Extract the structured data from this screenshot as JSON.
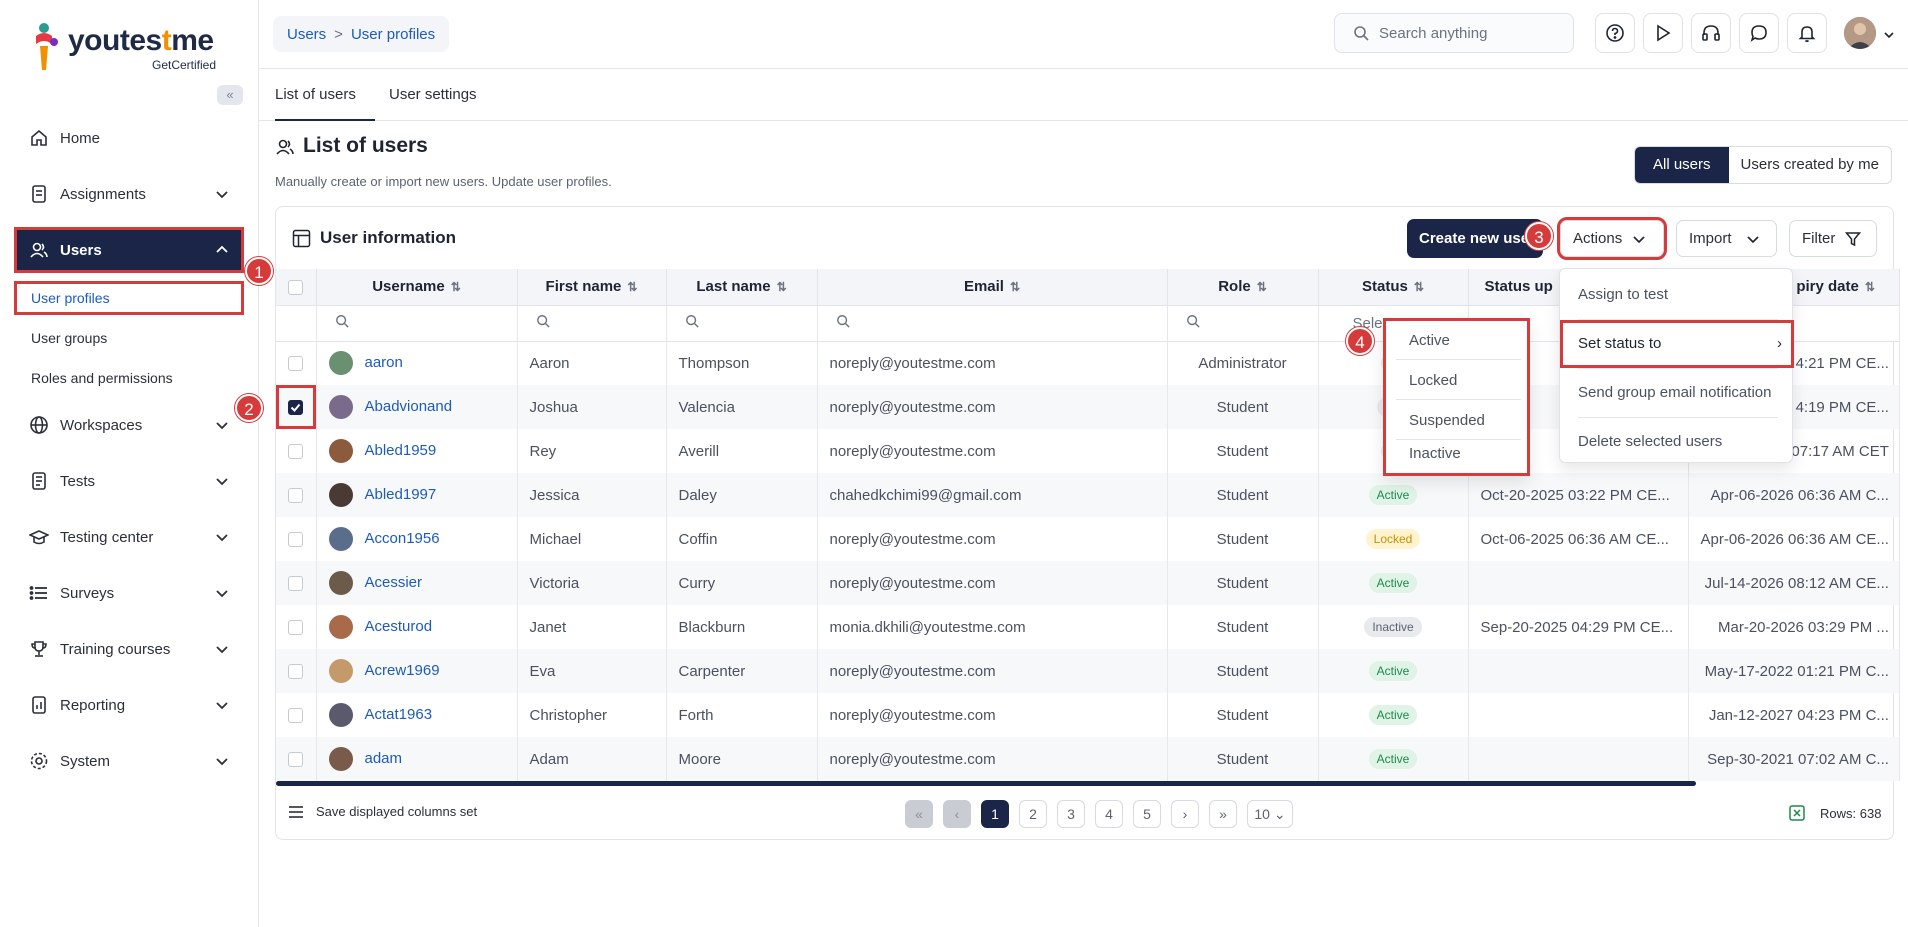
{
  "brand": {
    "name_part1": "youtes",
    "name_part2": "t",
    "name_part3": "me",
    "sub": "GetCertified"
  },
  "sidebar": {
    "items": [
      {
        "label": "Home",
        "icon": "home-icon"
      },
      {
        "label": "Assignments",
        "icon": "assignments-icon"
      },
      {
        "label": "Users",
        "icon": "users-icon"
      },
      {
        "label": "Workspaces",
        "icon": "globe-icon"
      },
      {
        "label": "Tests",
        "icon": "tests-icon"
      },
      {
        "label": "Testing center",
        "icon": "graduation-icon"
      },
      {
        "label": "Surveys",
        "icon": "list-icon"
      },
      {
        "label": "Training courses",
        "icon": "trophy-icon"
      },
      {
        "label": "Reporting",
        "icon": "report-icon"
      },
      {
        "label": "System",
        "icon": "gear-icon"
      }
    ],
    "users_sub": [
      "User profiles",
      "User groups",
      "Roles and permissions"
    ]
  },
  "steps": [
    "1",
    "2",
    "3",
    "4"
  ],
  "header": {
    "breadcrumb": [
      "Users",
      "User profiles"
    ],
    "breadcrumb_sep": ">",
    "search_placeholder": "Search anything"
  },
  "tabs": [
    "List of users",
    "User settings"
  ],
  "page": {
    "title": "List of users",
    "subtitle": "Manually create or import new users. Update user profiles.",
    "filter_all": "All users",
    "filter_mine": "Users created by me"
  },
  "card": {
    "title": "User information",
    "create": "Create new user",
    "actions": "Actions",
    "import": "Import",
    "filter": "Filter"
  },
  "table": {
    "columns": [
      "Username",
      "First name",
      "Last name",
      "Email",
      "Role",
      "Status",
      "Status up",
      "piry date"
    ],
    "status_filter_placeholder": "Selec",
    "rows": [
      {
        "username": "aaron",
        "first": "Aaron",
        "last": "Thompson",
        "email": "noreply@youtestme.com",
        "role": "Administrator",
        "status": "A",
        "status_updated": "",
        "expiry": "4:21 PM CE...",
        "checked": false
      },
      {
        "username": "Abadvionand",
        "first": "Joshua",
        "last": "Valencia",
        "email": "noreply@youtestme.com",
        "role": "Student",
        "status": "Ina",
        "status_updated": "202",
        "expiry": "4:19 PM CE...",
        "checked": true
      },
      {
        "username": "Abled1959",
        "first": "Rey",
        "last": "Averill",
        "email": "noreply@youtestme.com",
        "role": "Student",
        "status": "A",
        "status_updated": "",
        "expiry": "07:17 AM CET",
        "checked": false
      },
      {
        "username": "Abled1997",
        "first": "Jessica",
        "last": "Daley",
        "email": "chahedkchimi99@gmail.com",
        "role": "Student",
        "status": "Active",
        "status_updated": "Oct-20-2025 03:22 PM CE...",
        "expiry": "Apr-06-2026 06:36 AM C...",
        "checked": false
      },
      {
        "username": "Accon1956",
        "first": "Michael",
        "last": "Coffin",
        "email": "noreply@youtestme.com",
        "role": "Student",
        "status": "Locked",
        "status_updated": "Oct-06-2025 06:36 AM CE...",
        "expiry": "Apr-06-2026 06:36 AM CE...",
        "checked": false
      },
      {
        "username": "Acessier",
        "first": "Victoria",
        "last": "Curry",
        "email": "noreply@youtestme.com",
        "role": "Student",
        "status": "Active",
        "status_updated": "",
        "expiry": "Jul-14-2026 08:12 AM CE...",
        "checked": false
      },
      {
        "username": "Acesturod",
        "first": "Janet",
        "last": "Blackburn",
        "email": "monia.dkhili@youtestme.com",
        "role": "Student",
        "status": "Inactive",
        "status_updated": "Sep-20-2025 04:29 PM CE...",
        "expiry": "Mar-20-2026 03:29 PM ...",
        "checked": false
      },
      {
        "username": "Acrew1969",
        "first": "Eva",
        "last": "Carpenter",
        "email": "noreply@youtestme.com",
        "role": "Student",
        "status": "Active",
        "status_updated": "",
        "expiry": "May-17-2022 01:21 PM C...",
        "checked": false
      },
      {
        "username": "Actat1963",
        "first": "Christopher",
        "last": "Forth",
        "email": "noreply@youtestme.com",
        "role": "Student",
        "status": "Active",
        "status_updated": "",
        "expiry": "Jan-12-2027 04:23 PM C...",
        "checked": false
      },
      {
        "username": "adam",
        "first": "Adam",
        "last": "Moore",
        "email": "noreply@youtestme.com",
        "role": "Student",
        "status": "Active",
        "status_updated": "",
        "expiry": "Sep-30-2021 07:02 AM C...",
        "checked": false
      }
    ]
  },
  "actions_menu": [
    "Assign to test",
    "Set status to",
    "Send group email notification",
    "Delete selected users"
  ],
  "status_menu": [
    "Active",
    "Locked",
    "Suspended",
    "Inactive"
  ],
  "footer": {
    "save_columns": "Save displayed columns set",
    "pages": [
      "1",
      "2",
      "3",
      "4",
      "5"
    ],
    "page_size": "10",
    "rows_label": "Rows: 638"
  },
  "colors": {
    "navy": "#1a2547",
    "accent_red": "#d63b3b",
    "link": "#1e5bb8"
  }
}
